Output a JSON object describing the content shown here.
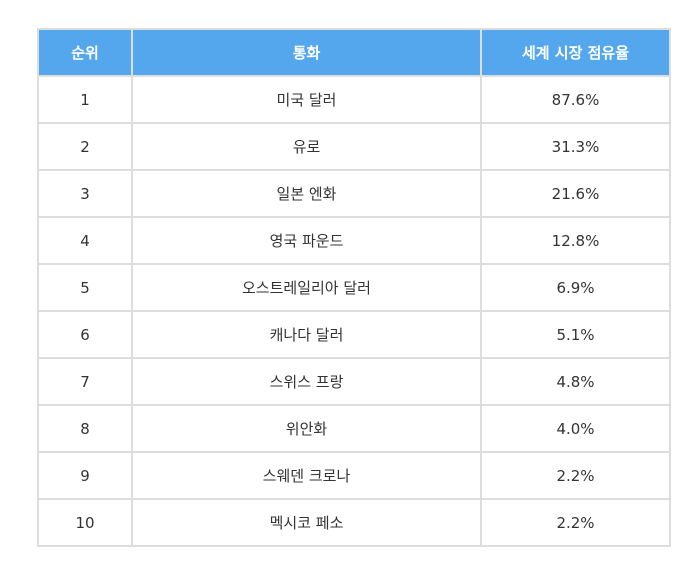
{
  "table": {
    "headers": [
      "순위",
      "통화",
      "세계 시장 점유율"
    ],
    "rows": [
      [
        "1",
        "미국 달러",
        "87.6%"
      ],
      [
        "2",
        "유로",
        "31.3%"
      ],
      [
        "3",
        "일본 엔화",
        "21.6%"
      ],
      [
        "4",
        "영국 파운드",
        "12.8%"
      ],
      [
        "5",
        "오스트레일리아 달러",
        "6.9%"
      ],
      [
        "6",
        "캐나다 달러",
        "5.1%"
      ],
      [
        "7",
        "스위스 프랑",
        "4.8%"
      ],
      [
        "8",
        "위안화",
        "4.0%"
      ],
      [
        "9",
        "스웨덴 크로나",
        "2.2%"
      ],
      [
        "10",
        "멕시코 페소",
        "2.2%"
      ]
    ]
  },
  "colors": {
    "header_bg": "#55a7ed",
    "header_text": "#ffffff",
    "border": "#dddddd",
    "text": "#333333"
  }
}
